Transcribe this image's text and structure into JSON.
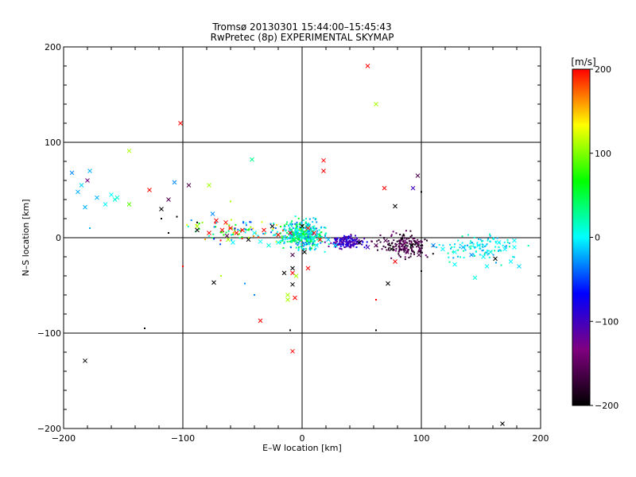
{
  "chart_data": {
    "type": "scatter",
    "title": "Tromsø 20130301 15:44:00–15:45:43",
    "subtitle": "RwPretec (8p) EXPERIMENTAL SKYMAP",
    "xlabel": "E–W location [km]",
    "ylabel": "N–S location [km]",
    "xlim": [
      -200,
      200
    ],
    "ylim": [
      -200,
      200
    ],
    "xticks": [
      -200,
      -100,
      0,
      100,
      200
    ],
    "yticks": [
      -200,
      -100,
      0,
      100,
      200
    ],
    "grid": true,
    "colorbar": {
      "label": "[m/s]",
      "range": [
        -200,
        200
      ],
      "ticks": [
        200,
        100,
        0,
        -100,
        -200
      ],
      "colors": [
        "#000000",
        "#800080",
        "#0000ff",
        "#00ffff",
        "#00ff00",
        "#ffff00",
        "#ff0000"
      ]
    },
    "cross_points": [
      [
        55,
        180,
        200
      ],
      [
        62,
        140,
        110
      ],
      [
        -102,
        120,
        200
      ],
      [
        -145,
        91,
        110
      ],
      [
        -42,
        82,
        30
      ],
      [
        18,
        81,
        200
      ],
      [
        18,
        70,
        200
      ],
      [
        -193,
        68,
        -30
      ],
      [
        -178,
        70,
        -20
      ],
      [
        -185,
        55,
        -10
      ],
      [
        -180,
        60,
        -140
      ],
      [
        -188,
        48,
        -20
      ],
      [
        -172,
        42,
        -20
      ],
      [
        -182,
        32,
        -20
      ],
      [
        -160,
        45,
        0
      ],
      [
        -157,
        40,
        10
      ],
      [
        -165,
        35,
        0
      ],
      [
        -155,
        42,
        10
      ],
      [
        -145,
        35,
        90
      ],
      [
        -128,
        50,
        200
      ],
      [
        -118,
        30,
        -200
      ],
      [
        -107,
        58,
        -30
      ],
      [
        -112,
        40,
        -160
      ],
      [
        -95,
        55,
        -160
      ],
      [
        -78,
        55,
        110
      ],
      [
        -75,
        25,
        -30
      ],
      [
        -72,
        18,
        200
      ],
      [
        -64,
        16,
        200
      ],
      [
        -60,
        10,
        200
      ],
      [
        -67,
        8,
        200
      ],
      [
        -78,
        5,
        200
      ],
      [
        -88,
        12,
        110
      ],
      [
        -88,
        8,
        -200
      ],
      [
        -55,
        5,
        200
      ],
      [
        -50,
        8,
        200
      ],
      [
        -45,
        -2,
        -200
      ],
      [
        -40,
        5,
        0
      ],
      [
        -32,
        8,
        200
      ],
      [
        -25,
        12,
        -200
      ],
      [
        -20,
        3,
        200
      ],
      [
        -10,
        5,
        200
      ],
      [
        -5,
        8,
        0
      ],
      [
        0,
        12,
        -200
      ],
      [
        5,
        10,
        200
      ],
      [
        10,
        5,
        200
      ],
      [
        15,
        -2,
        200
      ],
      [
        -74,
        -47,
        -200
      ],
      [
        -35,
        -87,
        200
      ],
      [
        -8,
        -32,
        -200
      ],
      [
        -8,
        -37,
        200
      ],
      [
        -15,
        -37,
        -200
      ],
      [
        5,
        -32,
        200
      ],
      [
        -5,
        -40,
        110
      ],
      [
        -12,
        -60,
        110
      ],
      [
        -12,
        -65,
        110
      ],
      [
        -6,
        -63,
        200
      ],
      [
        -8,
        -49,
        -200
      ],
      [
        -8,
        -119,
        200
      ],
      [
        -182,
        -129,
        -200
      ],
      [
        168,
        -195,
        -200
      ],
      [
        69,
        52,
        200
      ],
      [
        93,
        52,
        -100
      ],
      [
        97,
        65,
        -160
      ],
      [
        78,
        33,
        -200
      ],
      [
        72,
        -48,
        -200
      ],
      [
        78,
        -25,
        200
      ],
      [
        48,
        -5,
        -200
      ],
      [
        55,
        -10,
        -100
      ],
      [
        62,
        -8,
        -160
      ],
      [
        70,
        -3,
        -160
      ],
      [
        75,
        -12,
        -200
      ],
      [
        82,
        -5,
        -160
      ],
      [
        88,
        -15,
        -160
      ],
      [
        92,
        -8,
        -200
      ],
      [
        98,
        -18,
        -160
      ],
      [
        35,
        -3,
        -100
      ],
      [
        38,
        -5,
        -100
      ],
      [
        42,
        -8,
        -100
      ],
      [
        45,
        -3,
        -100
      ],
      [
        110,
        -8,
        -30
      ],
      [
        118,
        -12,
        0
      ],
      [
        128,
        -15,
        0
      ],
      [
        135,
        -10,
        -20
      ],
      [
        142,
        -18,
        -30
      ],
      [
        148,
        -8,
        0
      ],
      [
        152,
        -20,
        0
      ],
      [
        158,
        -15,
        10
      ],
      [
        165,
        -5,
        0
      ],
      [
        170,
        -12,
        0
      ],
      [
        175,
        -25,
        0
      ],
      [
        178,
        -10,
        0
      ],
      [
        182,
        -30,
        -10
      ],
      [
        128,
        -28,
        0
      ],
      [
        145,
        -42,
        10
      ],
      [
        155,
        -30,
        0
      ],
      [
        178,
        -3,
        0
      ],
      [
        162,
        -22,
        -200
      ],
      [
        -8,
        -18,
        -160
      ],
      [
        2,
        -15,
        -200
      ],
      [
        -20,
        -5,
        0
      ],
      [
        -28,
        -8,
        10
      ],
      [
        -58,
        -5,
        0
      ],
      [
        -62,
        -2,
        110
      ],
      [
        -63,
        2,
        -160
      ],
      [
        -35,
        -4,
        0
      ],
      [
        28,
        -8,
        0
      ],
      [
        22,
        -2,
        -20
      ],
      [
        12,
        -8,
        0
      ]
    ],
    "dot_clusters": [
      {
        "name": "central",
        "cx": 0,
        "cy": 3,
        "sx": 12,
        "sy": 10,
        "n": 420,
        "vmin": -40,
        "vmax": 60
      },
      {
        "name": "east-blue",
        "cx": 38,
        "cy": -4,
        "sx": 9,
        "sy": 5,
        "n": 140,
        "vmin": -130,
        "vmax": -60
      },
      {
        "name": "east-purple",
        "cx": 85,
        "cy": -8,
        "sx": 14,
        "sy": 8,
        "n": 180,
        "vmin": -200,
        "vmax": -130
      },
      {
        "name": "far-east-green",
        "cx": 150,
        "cy": -10,
        "sx": 22,
        "sy": 10,
        "n": 110,
        "vmin": -30,
        "vmax": 30
      },
      {
        "name": "west-line",
        "cx": -50,
        "cy": 8,
        "sx": 30,
        "sy": 8,
        "n": 90,
        "vmin": -60,
        "vmax": 200
      }
    ],
    "isolated_dots": [
      [
        -132,
        -95,
        -200
      ],
      [
        62,
        -97,
        -200
      ],
      [
        -10,
        -97,
        -200
      ],
      [
        -100,
        -30,
        200
      ],
      [
        100,
        -35,
        -200
      ],
      [
        62,
        -65,
        200
      ],
      [
        -48,
        -48,
        -30
      ],
      [
        -40,
        -60,
        -30
      ],
      [
        -68,
        -40,
        110
      ],
      [
        100,
        48,
        -200
      ],
      [
        -60,
        38,
        110
      ],
      [
        -112,
        5,
        -200
      ],
      [
        -88,
        16,
        -200
      ],
      [
        -105,
        22,
        -200
      ],
      [
        -118,
        20,
        -200
      ],
      [
        -178,
        10,
        -20
      ]
    ]
  }
}
